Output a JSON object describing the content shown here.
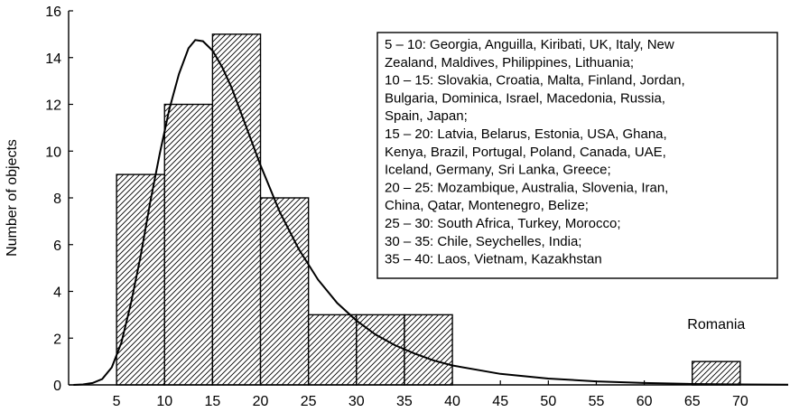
{
  "chart_data": {
    "type": "bar",
    "title": "",
    "xlabel": "",
    "ylabel": "Number of objects",
    "xlim": [
      0,
      75
    ],
    "ylim": [
      0,
      16
    ],
    "xticks": [
      5,
      10,
      15,
      20,
      25,
      30,
      35,
      40,
      45,
      50,
      55,
      60,
      65,
      70
    ],
    "yticks": [
      0,
      2,
      4,
      6,
      8,
      10,
      12,
      14,
      16
    ],
    "grid": false,
    "bars": [
      {
        "x0": 5,
        "x1": 10,
        "value": 9
      },
      {
        "x0": 10,
        "x1": 15,
        "value": 12
      },
      {
        "x0": 15,
        "x1": 20,
        "value": 15
      },
      {
        "x0": 20,
        "x1": 25,
        "value": 8
      },
      {
        "x0": 25,
        "x1": 30,
        "value": 3
      },
      {
        "x0": 30,
        "x1": 35,
        "value": 3
      },
      {
        "x0": 35,
        "x1": 40,
        "value": 3
      },
      {
        "x0": 65,
        "x1": 70,
        "value": 1
      }
    ],
    "fitted_curve": [
      [
        0.5,
        0
      ],
      [
        1.5,
        0.02
      ],
      [
        2.5,
        0.08
      ],
      [
        3.5,
        0.25
      ],
      [
        4.5,
        0.75
      ],
      [
        5.5,
        1.8
      ],
      [
        6.5,
        3.5
      ],
      [
        7.5,
        5.5
      ],
      [
        8.5,
        7.8
      ],
      [
        9.5,
        9.9
      ],
      [
        10.5,
        11.8
      ],
      [
        11.5,
        13.3
      ],
      [
        12.5,
        14.4
      ],
      [
        13.2,
        14.75
      ],
      [
        14,
        14.7
      ],
      [
        15,
        14.3
      ],
      [
        16,
        13.6
      ],
      [
        17,
        12.7
      ],
      [
        18,
        11.6
      ],
      [
        19,
        10.5
      ],
      [
        20,
        9.4
      ],
      [
        22,
        7.4
      ],
      [
        24,
        5.8
      ],
      [
        26,
        4.5
      ],
      [
        28,
        3.5
      ],
      [
        30,
        2.75
      ],
      [
        32,
        2.15
      ],
      [
        34,
        1.7
      ],
      [
        36,
        1.35
      ],
      [
        38,
        1.05
      ],
      [
        40,
        0.83
      ],
      [
        45,
        0.47
      ],
      [
        50,
        0.27
      ],
      [
        55,
        0.15
      ],
      [
        60,
        0.08
      ],
      [
        65,
        0.04
      ],
      [
        70,
        0.02
      ],
      [
        75,
        0.01
      ]
    ],
    "legend_lines": [
      "5 – 10: Georgia, Anguilla, Kiribati, UK, Italy, New",
      "Zealand, Maldives, Philippines, Lithuania;",
      "10 – 15: Slovakia, Croatia, Malta, Finland, Jordan,",
      "Bulgaria, Dominica, Israel, Macedonia, Russia,",
      "Spain, Japan;",
      "15 – 20: Latvia, Belarus, Estonia, USA, Ghana,",
      "Kenya, Brazil, Portugal, Poland, Canada, UAE,",
      "Iceland, Germany, Sri Lanka, Greece;",
      "20 – 25: Mozambique, Australia, Slovenia, Iran,",
      "China, Qatar, Montenegro, Belize;",
      "25 – 30: South Africa, Turkey, Morocco;",
      "30 – 35: Chile, Seychelles, India;",
      "35 – 40: Laos, Vietnam, Kazakhstan"
    ],
    "legend_placement": "top-right",
    "annotations": [
      {
        "text": "Romania",
        "x": 67.5,
        "y": 2.4
      }
    ],
    "colors": {
      "bar_fill": "#ffffff",
      "hatch": "#000000",
      "curve": "#000000",
      "axis": "#000000"
    }
  }
}
